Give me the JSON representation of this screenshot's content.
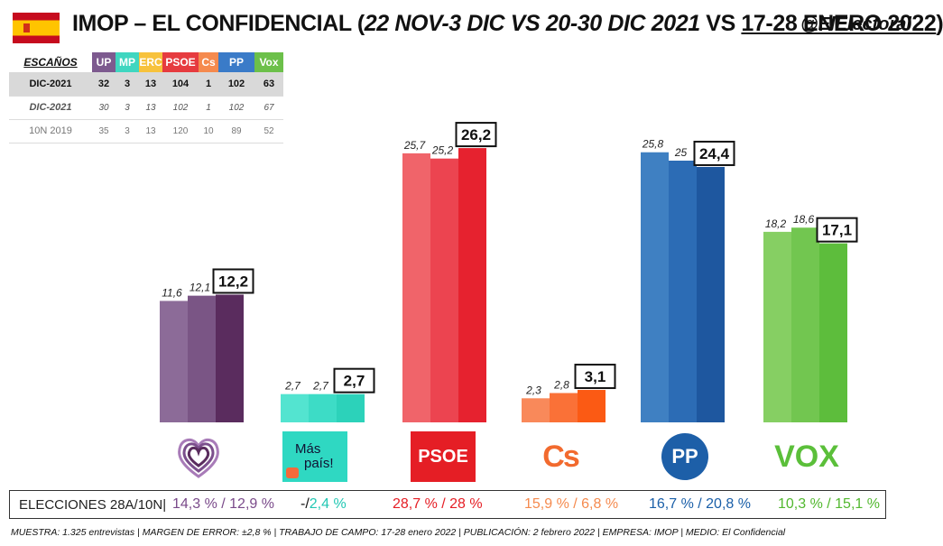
{
  "header": {
    "title_main": "IMOP – EL CONFIDENCIAL (",
    "title_italic": "22 NOV-3 DIC VS 20-30 DIC 2021",
    "title_vs": " VS ",
    "title_underlined": "17-28 ENERO 2022",
    "title_close": ")",
    "handle": "@ElElectoral"
  },
  "seats_table": {
    "label": "ESCAÑOS",
    "parties": [
      {
        "name": "UP",
        "color": "#7d5a8f"
      },
      {
        "name": "MP",
        "color": "#3fd6c0"
      },
      {
        "name": "ERC",
        "color": "#f7c23c"
      },
      {
        "name": "PSOE",
        "color": "#e63b3f"
      },
      {
        "name": "Cs",
        "color": "#f58a4e"
      },
      {
        "name": "PP",
        "color": "#3a7bc8"
      },
      {
        "name": "Vox",
        "color": "#6cc04a"
      }
    ],
    "rows": [
      {
        "label": "DIC-2021",
        "values": [
          "32",
          "3",
          "13",
          "104",
          "1",
          "102",
          "63"
        ]
      },
      {
        "label": "DIC-2021",
        "values": [
          "30",
          "3",
          "13",
          "102",
          "1",
          "102",
          "67"
        ]
      },
      {
        "label": "10N 2019",
        "values": [
          "35",
          "3",
          "13",
          "120",
          "10",
          "89",
          "52"
        ]
      }
    ]
  },
  "chart_data": {
    "type": "bar",
    "categories": [
      "UP",
      "Más País",
      "PSOE",
      "Cs",
      "PP",
      "Vox"
    ],
    "series": [
      {
        "values": [
          11.6,
          2.7,
          25.7,
          2.3,
          25.8,
          18.2
        ]
      },
      {
        "values": [
          12.1,
          2.7,
          25.2,
          2.8,
          25,
          18.6
        ]
      },
      {
        "values": [
          12.2,
          2.7,
          26.2,
          3.1,
          24.4,
          17.1
        ]
      }
    ],
    "labels": [
      [
        "11,6",
        "12,1",
        "12,2"
      ],
      [
        "2,7",
        "2,7",
        "2,7"
      ],
      [
        "25,7",
        "25,2",
        "26,2"
      ],
      [
        "2,3",
        "2,8",
        "3,1"
      ],
      [
        "25,8",
        "25",
        "24,4"
      ],
      [
        "18,2",
        "18,6",
        "17,1"
      ]
    ],
    "colors": [
      [
        "#8c6b98",
        "#7a5585",
        "#5a2c5e"
      ],
      [
        "#53e4d0",
        "#3ddcc6",
        "#2cd2ba"
      ],
      [
        "#f0646a",
        "#ec4450",
        "#e6222f"
      ],
      [
        "#f9895a",
        "#fa7137",
        "#fb5a14"
      ],
      [
        "#3f80c2",
        "#2c6cb5",
        "#1e579f"
      ],
      [
        "#86cf63",
        "#72c650",
        "#5dbd3c"
      ]
    ],
    "ylim": [
      0,
      30
    ]
  },
  "logos": {
    "mas_pais": [
      "Más",
      "país!"
    ],
    "psoe": "PSOE",
    "cs": "Cs",
    "pp": "PP",
    "vox": "VOX"
  },
  "results": {
    "label": "ELECCIONES 28A/10N|",
    "items": [
      {
        "text": "14,3 % / 12,9 %",
        "color": "#7a4a8a"
      },
      {
        "text_a": "-/",
        "text_b": "2,4 %",
        "color": "#21c7b3"
      },
      {
        "text": "28,7  % / 28 %",
        "color": "#e51e25"
      },
      {
        "text": "15,9 % / 6,8 %",
        "color": "#f58a4e"
      },
      {
        "text": "16,7 % / 20,8 %",
        "color": "#1a5fa8"
      },
      {
        "text": "10,3 % / 15,1 %",
        "color": "#52b82f"
      }
    ]
  },
  "footer": "MUESTRA: 1.325 entrevistas | MARGEN DE ERROR: ±2,8 % | TRABAJO DE CAMPO: 17-28 enero 2022  | PUBLICACIÓN: 2 febrero 2022 | EMPRESA: IMOP | MEDIO: El Confidencial"
}
